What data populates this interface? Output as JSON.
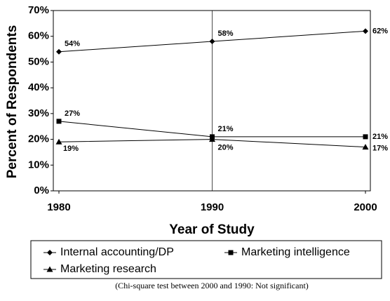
{
  "chart_data": {
    "type": "line",
    "x_label": "Year of Study",
    "y_label": "Percent of Respondents",
    "note": "(Chi-square test between 2000 and 1990: Not significant)",
    "x": [
      1980,
      1990,
      2000
    ],
    "xlim": [
      1980,
      2000
    ],
    "xticks": [
      1980,
      1990,
      2000
    ],
    "ylim": [
      0,
      70
    ],
    "yticks": [
      {
        "value": 0,
        "label": "0%"
      },
      {
        "value": 10,
        "label": "10%"
      },
      {
        "value": 20,
        "label": "20%"
      },
      {
        "value": 30,
        "label": "30%"
      },
      {
        "value": 40,
        "label": "40%"
      },
      {
        "value": 50,
        "label": "50%"
      },
      {
        "value": 60,
        "label": "60%"
      },
      {
        "value": 70,
        "label": "70%"
      }
    ],
    "series": [
      {
        "name": "Internal accounting/DP",
        "color": "#000000",
        "marker": "diamond",
        "values": [
          54,
          58,
          62
        ],
        "value_labels": [
          "54%",
          "58%",
          "62%"
        ]
      },
      {
        "name": "Marketing intelligence",
        "color": "#000000",
        "marker": "square",
        "values": [
          27,
          21,
          21
        ],
        "value_labels": [
          "27%",
          "21%",
          "21%"
        ]
      },
      {
        "name": "Marketing research",
        "color": "#000000",
        "marker": "triangle",
        "values": [
          19,
          20,
          17
        ],
        "value_labels": [
          "19%",
          "20%",
          "17%"
        ]
      }
    ]
  }
}
